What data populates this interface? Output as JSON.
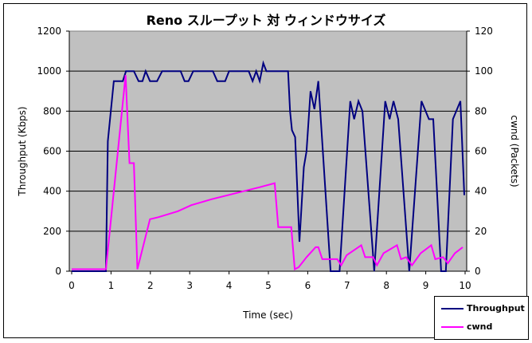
{
  "chart_data": {
    "type": "line",
    "title": "Reno スループット 対 ウィンドウサイズ",
    "xlabel": "Time (sec)",
    "ylabel": "Throughput (Kbps)",
    "y2label": "cwnd (Packets)",
    "xlim": [
      0,
      10
    ],
    "ylim": [
      0,
      1200
    ],
    "y2lim": [
      0,
      120
    ],
    "xticks": [
      "0",
      "1",
      "2",
      "3",
      "4",
      "5",
      "6",
      "7",
      "8",
      "9",
      "10"
    ],
    "yticks": [
      "0",
      "200",
      "400",
      "600",
      "800",
      "1000",
      "1200"
    ],
    "y2ticks": [
      "0",
      "20",
      "40",
      "60",
      "80",
      "100",
      "120"
    ],
    "grid": "horizontal",
    "plot_background": "#c0c0c0",
    "legend_position": "bottom-right",
    "series": [
      {
        "name": "Throughput",
        "axis": "left",
        "color": "#000080",
        "points": [
          [
            0,
            0
          ],
          [
            0.87,
            0
          ],
          [
            0.92,
            650
          ],
          [
            1.07,
            950
          ],
          [
            1.3,
            950
          ],
          [
            1.38,
            1000
          ],
          [
            1.58,
            1000
          ],
          [
            1.7,
            950
          ],
          [
            1.8,
            950
          ],
          [
            1.88,
            1000
          ],
          [
            1.99,
            950
          ],
          [
            2.17,
            950
          ],
          [
            2.3,
            1000
          ],
          [
            2.77,
            1000
          ],
          [
            2.87,
            950
          ],
          [
            2.97,
            950
          ],
          [
            3.09,
            1000
          ],
          [
            3.59,
            1000
          ],
          [
            3.7,
            950
          ],
          [
            3.9,
            950
          ],
          [
            4.0,
            1000
          ],
          [
            4.5,
            1000
          ],
          [
            4.6,
            950
          ],
          [
            4.69,
            1000
          ],
          [
            4.78,
            950
          ],
          [
            4.87,
            1040
          ],
          [
            4.95,
            1000
          ],
          [
            5.5,
            1000
          ],
          [
            5.55,
            800
          ],
          [
            5.6,
            705
          ],
          [
            5.68,
            670
          ],
          [
            5.79,
            147
          ],
          [
            5.9,
            520
          ],
          [
            5.97,
            600
          ],
          [
            6.07,
            900
          ],
          [
            6.17,
            810
          ],
          [
            6.27,
            950
          ],
          [
            6.58,
            0
          ],
          [
            6.81,
            0
          ],
          [
            7.08,
            850
          ],
          [
            7.18,
            760
          ],
          [
            7.29,
            850
          ],
          [
            7.39,
            800
          ],
          [
            7.69,
            0
          ],
          [
            7.97,
            850
          ],
          [
            8.08,
            760
          ],
          [
            8.18,
            850
          ],
          [
            8.3,
            760
          ],
          [
            8.58,
            0
          ],
          [
            8.89,
            850
          ],
          [
            9.08,
            760
          ],
          [
            9.19,
            760
          ],
          [
            9.39,
            0
          ],
          [
            9.51,
            0
          ],
          [
            9.69,
            760
          ],
          [
            9.88,
            850
          ],
          [
            9.98,
            380
          ]
        ]
      },
      {
        "name": "cwnd",
        "axis": "right",
        "color": "#ff00ff",
        "points": [
          [
            0,
            1
          ],
          [
            0.87,
            1
          ],
          [
            1.37,
            98
          ],
          [
            1.47,
            54
          ],
          [
            1.58,
            54
          ],
          [
            1.67,
            1
          ],
          [
            1.99,
            26
          ],
          [
            2.2,
            27
          ],
          [
            2.7,
            30
          ],
          [
            3.04,
            33
          ],
          [
            3.56,
            36
          ],
          [
            3.97,
            38
          ],
          [
            4.37,
            40
          ],
          [
            4.78,
            42
          ],
          [
            5.16,
            44
          ],
          [
            5.25,
            22
          ],
          [
            5.58,
            22
          ],
          [
            5.67,
            1
          ],
          [
            5.77,
            2
          ],
          [
            5.97,
            7
          ],
          [
            6.2,
            12
          ],
          [
            6.27,
            12
          ],
          [
            6.37,
            6
          ],
          [
            6.75,
            6
          ],
          [
            6.85,
            3
          ],
          [
            6.99,
            8
          ],
          [
            7.36,
            13
          ],
          [
            7.46,
            7
          ],
          [
            7.66,
            7
          ],
          [
            7.76,
            3
          ],
          [
            7.93,
            9
          ],
          [
            8.27,
            13
          ],
          [
            8.37,
            6
          ],
          [
            8.5,
            7
          ],
          [
            8.65,
            3
          ],
          [
            8.87,
            9
          ],
          [
            9.14,
            13
          ],
          [
            9.24,
            6
          ],
          [
            9.44,
            7
          ],
          [
            9.56,
            4
          ],
          [
            9.74,
            9
          ],
          [
            9.94,
            12
          ]
        ]
      }
    ]
  }
}
